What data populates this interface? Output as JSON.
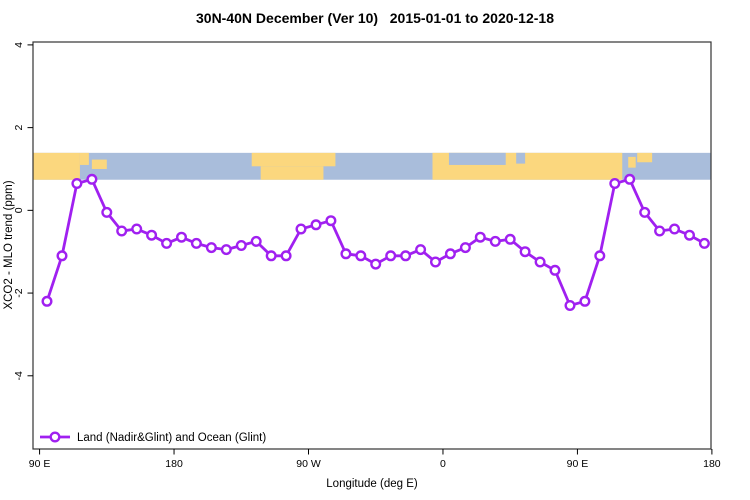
{
  "title": "30N-40N December (Ver 10)   2015-01-01 to 2020-12-18",
  "chart_data": {
    "type": "line",
    "title": "30N-40N December (Ver 10)   2015-01-01 to 2020-12-18",
    "xlabel": "Longitude (deg E)",
    "ylabel": "XCO2 - MLO trend (ppm)",
    "xlim": [
      85.6,
      539.4
    ],
    "ylim": [
      -5.77,
      4.07
    ],
    "grid": false,
    "legend_position": "bottom-left",
    "x_ticks": [
      {
        "value": 90,
        "label": "90 E"
      },
      {
        "value": 180,
        "label": "180"
      },
      {
        "value": 270,
        "label": "90 W"
      },
      {
        "value": 360,
        "label": "0"
      },
      {
        "value": 450,
        "label": "90 E"
      },
      {
        "value": 540,
        "label": "180"
      }
    ],
    "y_ticks": [
      {
        "value": 4,
        "label": "4"
      },
      {
        "value": 2,
        "label": "2"
      },
      {
        "value": 0,
        "label": "0"
      },
      {
        "value": -2,
        "label": "-2"
      },
      {
        "value": -4,
        "label": "-4"
      }
    ],
    "series": [
      {
        "name": "Land (Nadir&Glint) and Ocean (Glint)",
        "color": "#A020F0",
        "marker": "open-circle",
        "x": [
          95,
          105,
          115,
          125,
          135,
          145,
          155,
          165,
          175,
          185,
          195,
          205,
          215,
          225,
          235,
          245,
          255,
          265,
          275,
          285,
          295,
          305,
          315,
          325,
          335,
          345,
          355,
          365,
          375,
          385,
          395,
          405,
          415,
          425,
          435,
          445,
          455,
          465,
          475,
          485,
          495,
          505,
          515,
          525,
          535
        ],
        "y": [
          -2.2,
          -1.1,
          0.65,
          0.75,
          -0.05,
          -0.5,
          -0.45,
          -0.6,
          -0.8,
          -0.65,
          -0.8,
          -0.9,
          -0.95,
          -0.85,
          -0.75,
          -1.1,
          -1.1,
          -0.45,
          -0.35,
          -0.25,
          -1.05,
          -1.1,
          -1.3,
          -1.1,
          -1.1,
          -0.95,
          -1.25,
          -1.05,
          -0.9,
          -0.65,
          -0.75,
          -0.7,
          -1.0,
          -1.25,
          -1.45,
          -2.3,
          -2.2,
          -1.1,
          0.65,
          0.75,
          -0.05,
          -0.5,
          -0.45,
          -0.6,
          -0.8
        ]
      }
    ],
    "map_band": {
      "description": "30N-40N latitude strip world map, land vs ocean",
      "value_top": 1.39,
      "value_bottom": 0.74,
      "ocean_color": "#A9BDDB",
      "land_color": "#FBD77E",
      "land_rects": [
        {
          "lon0": 85.6,
          "lon1": 117,
          "f0": 0,
          "f1": 1
        },
        {
          "lon0": 117,
          "lon1": 123,
          "f0": 0,
          "f1": 0.45
        },
        {
          "lon0": 125,
          "lon1": 135,
          "f0": 0.25,
          "f1": 0.6
        },
        {
          "lon0": 232,
          "lon1": 288,
          "f0": 0,
          "f1": 0.5
        },
        {
          "lon0": 238,
          "lon1": 280,
          "f0": 0.5,
          "f1": 1
        },
        {
          "lon0": 353,
          "lon1": 480,
          "f0": 0,
          "f1": 1
        },
        {
          "lon0": 484,
          "lon1": 489,
          "f0": 0.15,
          "f1": 0.55
        },
        {
          "lon0": 490,
          "lon1": 500,
          "f0": 0,
          "f1": 0.35
        }
      ],
      "ocean_rects": [
        {
          "lon0": 364,
          "lon1": 402,
          "f0": 0,
          "f1": 0.45
        },
        {
          "lon0": 409,
          "lon1": 415,
          "f0": 0,
          "f1": 0.4
        }
      ]
    }
  }
}
